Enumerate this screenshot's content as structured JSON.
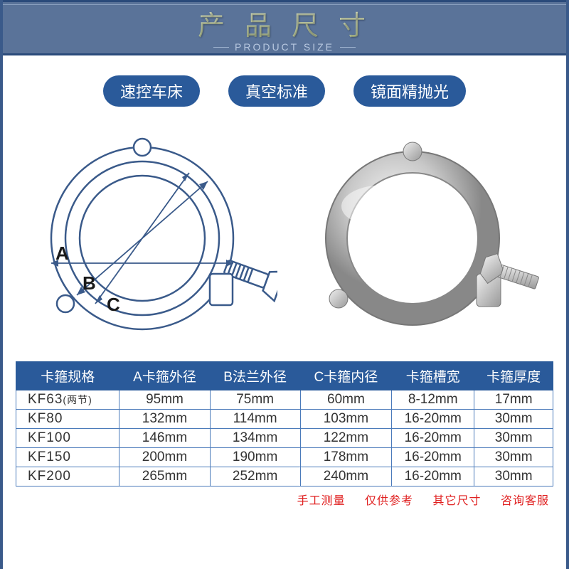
{
  "header": {
    "title_cn": "产品尺寸",
    "title_en": "PRODUCT SIZE",
    "bg_color": "#5a7399",
    "border_color": "#2a4a7a"
  },
  "pills": {
    "items": [
      "速控车床",
      "真空标准",
      "镜面精抛光"
    ],
    "bg_color": "#2a5a9a",
    "text_color": "#ffffff"
  },
  "diagram": {
    "labels": {
      "A": "A",
      "B": "B",
      "C": "C"
    },
    "line_color": "#3a5a8a",
    "stroke_width": 2
  },
  "table": {
    "header_bg": "#2a5a9a",
    "header_fg": "#ffffff",
    "border_color": "#4a7aba",
    "columns": [
      "卡箍规格",
      "A卡箍外径",
      "B法兰外径",
      "C卡箍内径",
      "卡箍槽宽",
      "卡箍厚度"
    ],
    "rows": [
      {
        "spec": "KF63",
        "spec_note": "(两节)",
        "a": "95mm",
        "b": "75mm",
        "c": "60mm",
        "slot": "8-12mm",
        "thk": "17mm"
      },
      {
        "spec": "KF80",
        "spec_note": "",
        "a": "132mm",
        "b": "114mm",
        "c": "103mm",
        "slot": "16-20mm",
        "thk": "30mm"
      },
      {
        "spec": "KF100",
        "spec_note": "",
        "a": "146mm",
        "b": "134mm",
        "c": "122mm",
        "slot": "16-20mm",
        "thk": "30mm"
      },
      {
        "spec": "KF150",
        "spec_note": "",
        "a": "200mm",
        "b": "190mm",
        "c": "178mm",
        "slot": "16-20mm",
        "thk": "30mm"
      },
      {
        "spec": "KF200",
        "spec_note": "",
        "a": "265mm",
        "b": "252mm",
        "c": "240mm",
        "slot": "16-20mm",
        "thk": "30mm"
      }
    ]
  },
  "footnote": {
    "parts": [
      "手工测量",
      "仅供参考",
      "其它尺寸",
      "咨询客服"
    ],
    "color": "#e02020"
  }
}
